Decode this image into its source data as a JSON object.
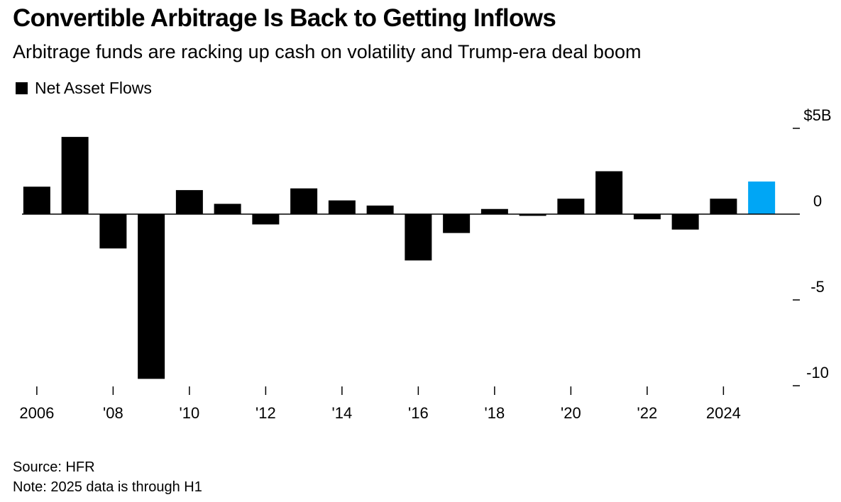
{
  "chart_data": {
    "type": "bar",
    "title": "Convertible Arbitrage Is Back to Getting Inflows",
    "subtitle": "Arbitrage funds are racking up cash on volatility and Trump-era deal boom",
    "legend": [
      "Net Asset Flows"
    ],
    "categories": [
      "2006",
      "2007",
      "2008",
      "2009",
      "2010",
      "2011",
      "2012",
      "2013",
      "2014",
      "2015",
      "2016",
      "2017",
      "2018",
      "2019",
      "2020",
      "2021",
      "2022",
      "2023",
      "2024",
      "2025"
    ],
    "series": [
      {
        "name": "Net Asset Flows",
        "values": [
          1.6,
          4.5,
          -2.0,
          -9.6,
          1.4,
          0.6,
          -0.6,
          1.5,
          0.8,
          0.5,
          -2.7,
          -1.1,
          0.3,
          -0.1,
          0.9,
          2.5,
          -0.3,
          -0.9,
          0.9,
          1.9
        ]
      }
    ],
    "highlight_color": "#00a6f5",
    "bar_color": "#000000",
    "highlight_category": "2025",
    "x_tick_labels": [
      "2006",
      "'08",
      "'10",
      "'12",
      "'14",
      "'16",
      "'18",
      "'20",
      "'22",
      "2024"
    ],
    "y_ticks": [
      {
        "value": 5,
        "label": "$5B"
      },
      {
        "value": 0,
        "label": "0"
      },
      {
        "value": -5,
        "label": "-5"
      },
      {
        "value": -10,
        "label": "-10"
      }
    ],
    "ylim": [
      -10,
      5
    ],
    "xlabel": "",
    "ylabel": "",
    "source": "Source: HFR",
    "note": "Note: 2025 data is through H1"
  }
}
